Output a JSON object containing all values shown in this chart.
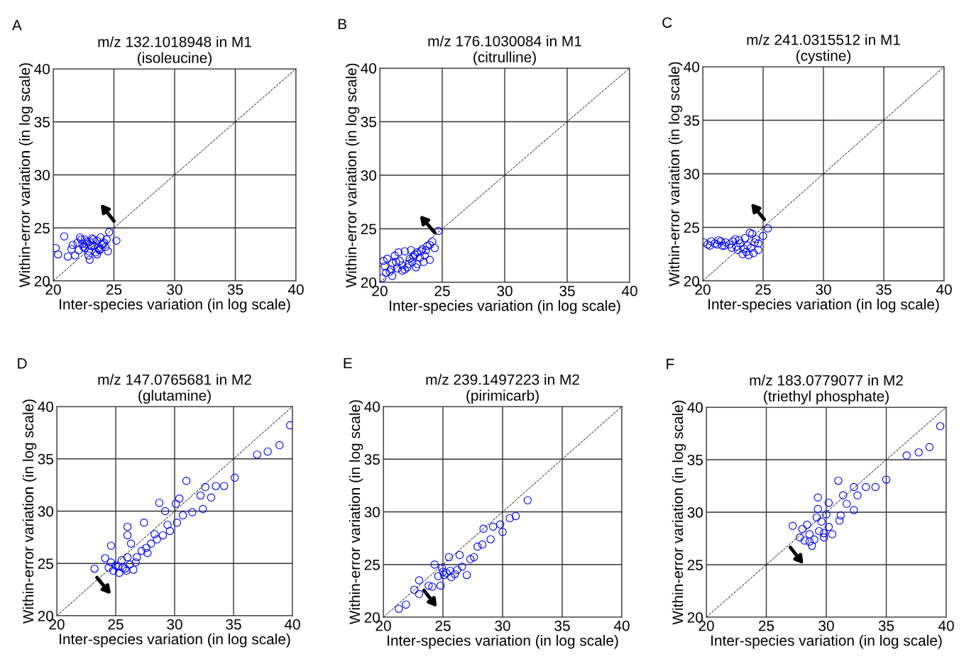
{
  "chart_data": [
    {
      "type": "scatter",
      "title": "m/z 132.1018948 in M1\n(isoleucine)",
      "annotations": [
        "A"
      ],
      "xlabel": "Inter-species variation (in log scale)",
      "ylabel": "Within-error variation (in log scale)",
      "xlim": [
        20,
        40
      ],
      "ylim": [
        20,
        40
      ],
      "xticks": [
        20,
        25,
        30,
        35,
        40
      ],
      "yticks": [
        20,
        25,
        30,
        35,
        40
      ],
      "grid": true,
      "marker": "circle",
      "series": [
        {
          "color": "#0000ff",
          "x": [
            20.2,
            20.4,
            20.9,
            21.5,
            21.8,
            22,
            22.3,
            22.5,
            22.7,
            22.9,
            23,
            23.2,
            23.4,
            23.6,
            23.8,
            24,
            24.2,
            24.4,
            22.1,
            22.6,
            23.1,
            23.5,
            23.9,
            24.3,
            22.4,
            22.8,
            23.3,
            23.7,
            24.1,
            21.2,
            23,
            24.6,
            25.2,
            23.6,
            22.2,
            22.9,
            23.8,
            24.5,
            21.6,
            22.6
          ],
          "values": [
            23.1,
            22.5,
            24.2,
            23,
            22.4,
            23.6,
            23.9,
            23.2,
            23.5,
            22.8,
            23.7,
            24,
            23.3,
            23.8,
            22.9,
            23.4,
            23.6,
            23.9,
            22.9,
            23.1,
            23.3,
            22.7,
            24.1,
            23.2,
            23.5,
            23.7,
            23.9,
            23.1,
            23.5,
            22.3,
            22,
            24.6,
            23.8,
            22.5,
            24.1,
            22.4,
            23,
            22.8,
            23.4,
            23.9
          ]
        },
        {
          "type": "line",
          "color": "#000000",
          "line_style": "dashed",
          "marker": "none",
          "x": [
            20,
            40
          ],
          "values": [
            20,
            40
          ]
        }
      ]
    },
    {
      "type": "scatter",
      "title": "m/z 176.1030084 in M1\n(citrulline)",
      "annotations": [
        "B"
      ],
      "xlabel": "Inter-species variation (in log scale)",
      "ylabel": "Within-error variation (in log scale)",
      "xlim": [
        20,
        40
      ],
      "ylim": [
        20,
        40
      ],
      "xticks": [
        20,
        25,
        30,
        35,
        40
      ],
      "yticks": [
        20,
        25,
        30,
        35,
        40
      ],
      "grid": true,
      "marker": "circle",
      "series": [
        {
          "color": "#0000ff",
          "x": [
            20.2,
            20.4,
            20.6,
            20.8,
            21,
            21.2,
            21.4,
            21.6,
            21.8,
            22,
            22.2,
            22.4,
            22.6,
            22.8,
            23,
            23.2,
            23.4,
            23.6,
            23.8,
            24,
            24.2,
            24.4,
            24.7,
            20.5,
            21,
            21.5,
            22,
            22.5,
            23,
            23.5,
            24,
            21.3,
            22.3,
            23.3,
            20.9,
            21.8,
            22.7,
            23.7,
            20.3,
            22.9
          ],
          "values": [
            20.4,
            21.5,
            22.2,
            21,
            21.8,
            22.5,
            21.3,
            22,
            21.6,
            22.9,
            21.4,
            22.2,
            21.9,
            22.6,
            21.7,
            22.3,
            23.1,
            22.5,
            23.4,
            22.1,
            23.8,
            23.2,
            24.8,
            20.9,
            20.6,
            22.8,
            21.2,
            23,
            22.8,
            21.9,
            23.5,
            21.9,
            21.7,
            22.9,
            21.2,
            21.1,
            22.4,
            23,
            22,
            21.4
          ]
        },
        {
          "type": "line",
          "color": "#000000",
          "line_style": "dashed",
          "marker": "none",
          "x": [
            20,
            40
          ],
          "values": [
            20,
            40
          ]
        }
      ]
    },
    {
      "type": "scatter",
      "title": "m/z 241.0315512 in M1\n(cystine)",
      "annotations": [
        "C"
      ],
      "xlabel": "Inter-species variation (in log scale)",
      "ylabel": "Within-error variation (in log scale)",
      "xlim": [
        20,
        40
      ],
      "ylim": [
        20,
        40
      ],
      "xticks": [
        20,
        25,
        30,
        35,
        40
      ],
      "yticks": [
        20,
        25,
        30,
        35,
        40
      ],
      "grid": true,
      "marker": "circle",
      "series": [
        {
          "color": "#0000ff",
          "x": [
            20.1,
            20.4,
            20.7,
            21,
            21.3,
            21.6,
            21.9,
            22.2,
            22.5,
            22.8,
            23.1,
            23.4,
            23.7,
            24,
            24.3,
            24.6,
            25,
            20.6,
            21.2,
            21.8,
            22.4,
            23,
            23.6,
            24.2,
            23.3,
            23.8,
            24.1,
            22.7,
            23.5,
            24.4,
            23.9,
            21.5,
            22.9,
            24.6,
            25.4
          ],
          "values": [
            23.6,
            23.4,
            23.7,
            23.5,
            23.8,
            23.3,
            23.6,
            23.4,
            23.7,
            23.2,
            23.5,
            23,
            23.3,
            23.1,
            23.6,
            22.9,
            24.2,
            23.3,
            23.4,
            23.3,
            23.1,
            23.8,
            22.7,
            22.6,
            22.5,
            22.4,
            24.4,
            23.9,
            24,
            23.9,
            24.5,
            23.7,
            22.9,
            23.5,
            24.9
          ]
        },
        {
          "type": "line",
          "color": "#000000",
          "line_style": "dashed",
          "marker": "none",
          "x": [
            20,
            40
          ],
          "values": [
            20,
            40
          ]
        }
      ]
    },
    {
      "type": "scatter",
      "title": "m/z 147.0765681 in M2\n(glutamine)",
      "annotations": [
        "D"
      ],
      "xlabel": "Inter-species variation (in log scale)",
      "ylabel": "Within-error variation (in log scale)",
      "xlim": [
        20,
        40
      ],
      "ylim": [
        20,
        40
      ],
      "xticks": [
        20,
        25,
        30,
        35,
        40
      ],
      "yticks": [
        20,
        25,
        30,
        35,
        40
      ],
      "grid": true,
      "marker": "circle",
      "series": [
        {
          "color": "#0000ff",
          "x": [
            23.2,
            39.8,
            38.9,
            37.9,
            37.0,
            35.1,
            31.0,
            34.2,
            33.5,
            32.6,
            33.1,
            28.7,
            30.4,
            32.2,
            32.4,
            29.2,
            30.1,
            30.7,
            27.4,
            26.0,
            26.0,
            24.6,
            29.4,
            28.3,
            27.7,
            26.3,
            24.1,
            25.3,
            25.6,
            25.9,
            26.2,
            26.5,
            26.7,
            25.0,
            24.6,
            24.4,
            25.5,
            26.0,
            26.8,
            27.2,
            27.6,
            28.0,
            28.5,
            29.0,
            29.6,
            30.2,
            31.5,
            24.8,
            25.2,
            25.8
          ],
          "values": [
            24.5,
            38.2,
            36.3,
            35.7,
            35.4,
            33.2,
            32.9,
            32.4,
            32.4,
            32.3,
            31.3,
            30.8,
            31.2,
            31.5,
            30.2,
            30.0,
            30.7,
            29.6,
            28.9,
            28.5,
            27.7,
            26.7,
            28.7,
            27.8,
            26.0,
            26.9,
            25.5,
            24.1,
            24.6,
            24.3,
            24.9,
            24.4,
            25.1,
            24.8,
            25.1,
            24.6,
            25.3,
            25.6,
            25.6,
            26.2,
            26.5,
            26.9,
            27.3,
            27.7,
            28.1,
            28.9,
            29.9,
            24.3,
            24.7,
            24.5
          ]
        },
        {
          "type": "line",
          "color": "#000000",
          "line_style": "dashed",
          "marker": "none",
          "x": [
            20,
            40
          ],
          "values": [
            20,
            40
          ]
        }
      ]
    },
    {
      "type": "scatter",
      "title": "m/z 239.1497223 in M2\n(pirimicarb)",
      "annotations": [
        "E"
      ],
      "xlabel": "Inter-species variation (in log scale)",
      "ylabel": "Within-error variation (in log scale)",
      "xlim": [
        20,
        40
      ],
      "ylim": [
        20,
        40
      ],
      "xticks": [
        20,
        25,
        30,
        35,
        40
      ],
      "yticks": [
        20,
        25,
        30,
        35,
        40
      ],
      "grid": true,
      "marker": "circle",
      "series": [
        {
          "color": "#0000ff",
          "x": [
            32.1,
            31.1,
            30.6,
            29.8,
            30.0,
            29.2,
            28.4,
            29.0,
            27.9,
            28.3,
            27.6,
            26.4,
            27.3,
            25.5,
            24.9,
            25.3,
            25.7,
            26.2,
            25.1,
            25.6,
            24.3,
            27.0,
            24.8,
            23.8,
            23.0,
            22.6,
            23.0,
            21.9,
            21.3,
            24.1,
            26.0,
            26.6,
            25.0,
            24.6
          ],
          "values": [
            31.1,
            29.6,
            29.4,
            28.8,
            28.1,
            28.6,
            28.4,
            27.4,
            26.7,
            26.9,
            25.7,
            25.9,
            25.5,
            25.7,
            24.7,
            24.2,
            23.8,
            24.5,
            24.0,
            24.4,
            25.0,
            24.0,
            23.0,
            23.0,
            23.5,
            22.6,
            22.2,
            21.2,
            20.8,
            22.9,
            24.1,
            24.8,
            24.3,
            23.9
          ]
        },
        {
          "type": "line",
          "color": "#000000",
          "line_style": "dashed",
          "marker": "none",
          "x": [
            20,
            40
          ],
          "values": [
            20,
            40
          ]
        }
      ]
    },
    {
      "type": "scatter",
      "title": "m/z 183.0779077 in M2\n(triethyl phosphate)",
      "annotations": [
        "F"
      ],
      "xlabel": "Inter-species variation (in log scale)",
      "ylabel": "Within-error variation (in log scale)",
      "xlim": [
        20,
        40
      ],
      "ylim": [
        20,
        40
      ],
      "xticks": [
        20,
        25,
        30,
        35,
        40
      ],
      "yticks": [
        20,
        25,
        30,
        35,
        40
      ],
      "grid": true,
      "marker": "circle",
      "series": [
        {
          "color": "#0000ff",
          "x": [
            39.5,
            38.6,
            37.7,
            36.7,
            35.0,
            34.1,
            33.3,
            32.3,
            31.0,
            32.6,
            31.4,
            31.7,
            32.3,
            29.3,
            30.2,
            31.2,
            31.1,
            29.3,
            27.2,
            27.8,
            28.2,
            28.6,
            29.0,
            29.4,
            29.8,
            30.2,
            28.8,
            30.5,
            28.0,
            28.4,
            29.2,
            29.6,
            30.0,
            28.6,
            29.8
          ],
          "values": [
            38.2,
            36.2,
            35.7,
            35.4,
            33.1,
            32.4,
            32.4,
            32.4,
            33.0,
            31.6,
            31.6,
            30.8,
            30.2,
            31.4,
            30.9,
            29.7,
            29.2,
            30.3,
            28.7,
            27.6,
            27.3,
            27.9,
            27.4,
            28.2,
            27.6,
            28.6,
            26.8,
            27.9,
            28.4,
            28.8,
            29.5,
            29.1,
            29.8,
            27.2,
            28.0
          ]
        },
        {
          "type": "line",
          "color": "#000000",
          "line_style": "dashed",
          "marker": "none",
          "x": [
            20,
            40
          ],
          "values": [
            20,
            40
          ]
        }
      ]
    }
  ]
}
